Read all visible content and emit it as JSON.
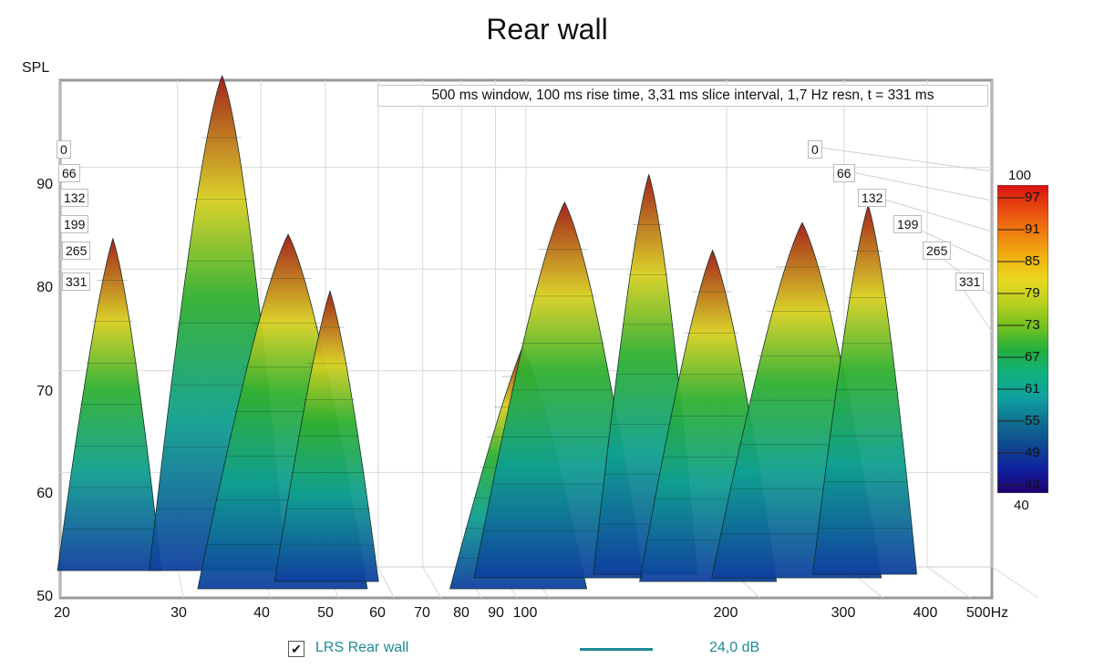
{
  "chart_data": {
    "type": "waterfall",
    "title": "Rear wall",
    "ylabel": "SPL",
    "xlabel_unit": "Hz",
    "ylim": [
      50,
      100
    ],
    "x_scale": "log",
    "xlim": [
      20,
      500
    ],
    "y_ticks": [
      "50",
      "60",
      "70",
      "80",
      "90"
    ],
    "x_ticks": [
      "20",
      "30",
      "40",
      "50",
      "60",
      "70",
      "80",
      "90",
      "100",
      "200",
      "300",
      "400",
      "500Hz"
    ],
    "x_tick_values": [
      20,
      30,
      40,
      50,
      60,
      70,
      80,
      90,
      100,
      200,
      300,
      400,
      500
    ],
    "time_slices_ms": [
      "0",
      "66",
      "132",
      "199",
      "265",
      "331"
    ],
    "info_text": "500 ms window, 100 ms rise time, 3,31 ms slice interval, 1,7 Hz resn, t = 331 ms",
    "colorbar": {
      "range": [
        40,
        100
      ],
      "labels": [
        "100",
        "97",
        "91",
        "85",
        "79",
        "73",
        "67",
        "61",
        "55",
        "49",
        "43",
        "40"
      ],
      "colors": [
        "#d81010",
        "#e84a10",
        "#f07c10",
        "#f0b010",
        "#e8d820",
        "#b8d020",
        "#70c020",
        "#20b040",
        "#10b080",
        "#10a0a0",
        "#107090",
        "#104890",
        "#1020a0",
        "#200070"
      ]
    },
    "peaks": [
      {
        "freq": 24,
        "level": 83,
        "slice": 0
      },
      {
        "freq": 35,
        "level": 99,
        "slice": 0
      },
      {
        "freq": 40,
        "level": 87,
        "slice": 5
      },
      {
        "freq": 48,
        "level": 80,
        "slice": 3
      },
      {
        "freq": 90,
        "level": 76,
        "slice": 5
      },
      {
        "freq": 110,
        "level": 88,
        "slice": 2
      },
      {
        "freq": 150,
        "level": 90,
        "slice": 1
      },
      {
        "freq": 180,
        "level": 84,
        "slice": 3
      },
      {
        "freq": 250,
        "level": 86,
        "slice": 2
      },
      {
        "freq": 320,
        "level": 87,
        "slice": 1
      }
    ],
    "legend": {
      "name": "LRS Rear wall",
      "value": "24,0 dB",
      "color": "#1e8a94",
      "checked": true
    }
  }
}
